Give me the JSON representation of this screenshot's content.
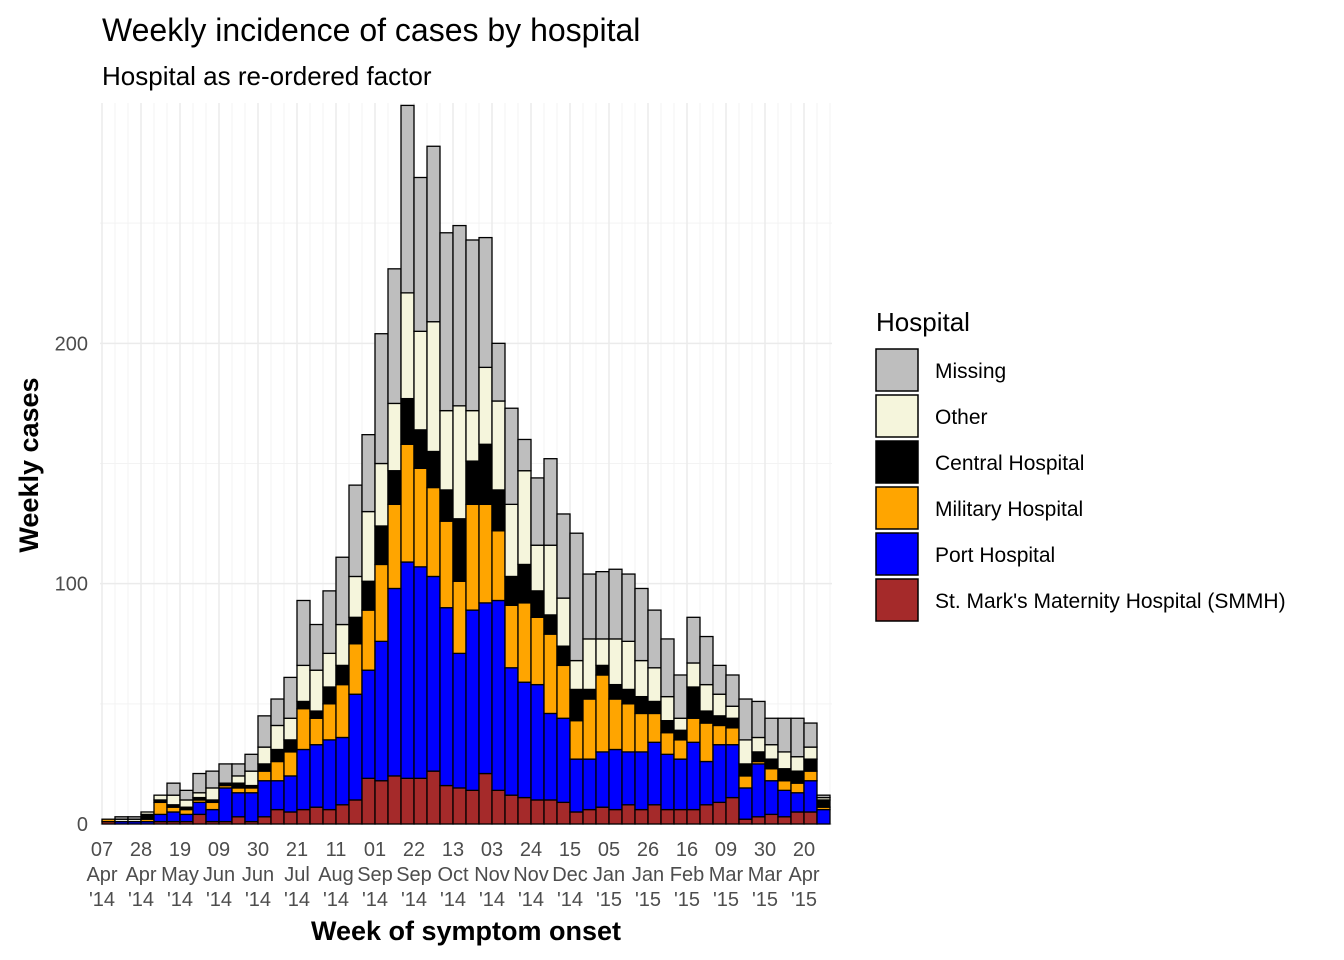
{
  "chart_data": {
    "type": "histogram",
    "title": "Weekly incidence of cases by hospital",
    "subtitle": "Hospital as re-ordered factor",
    "x_label": "Week of symptom onset",
    "y_label": "Weekly cases",
    "legend_title": "Hospital",
    "legend_position": "right",
    "grid": true,
    "bins": [
      0,
      1,
      2,
      3,
      4,
      5,
      6,
      7,
      8,
      9,
      10,
      11,
      12,
      13,
      14,
      15,
      16,
      17,
      18,
      19,
      20,
      21,
      22,
      23,
      24,
      25,
      26,
      27,
      28,
      29,
      30,
      31,
      32,
      33,
      34,
      35,
      36,
      37,
      38,
      39,
      40,
      41,
      42,
      43,
      44,
      45,
      46,
      47,
      48,
      49,
      50,
      51,
      52,
      53,
      54,
      55,
      56
    ],
    "xlim": [
      0,
      56
    ],
    "xticks": [
      {
        "value": 0,
        "label": [
          "07",
          "Apr",
          "'14"
        ]
      },
      {
        "value": 3,
        "label": [
          "28",
          "Apr",
          "'14"
        ]
      },
      {
        "value": 6,
        "label": [
          "19",
          "May",
          "'14"
        ]
      },
      {
        "value": 9,
        "label": [
          "09",
          "Jun",
          "'14"
        ]
      },
      {
        "value": 12,
        "label": [
          "30",
          "Jun",
          "'14"
        ]
      },
      {
        "value": 15,
        "label": [
          "21",
          "Jul",
          "'14"
        ]
      },
      {
        "value": 18,
        "label": [
          "11",
          "Aug",
          "'14"
        ]
      },
      {
        "value": 21,
        "label": [
          "01",
          "Sep",
          "'14"
        ]
      },
      {
        "value": 24,
        "label": [
          "22",
          "Sep",
          "'14"
        ]
      },
      {
        "value": 27,
        "label": [
          "13",
          "Oct",
          "'14"
        ]
      },
      {
        "value": 30,
        "label": [
          "03",
          "Nov",
          "'14"
        ]
      },
      {
        "value": 33,
        "label": [
          "24",
          "Nov",
          "'14"
        ]
      },
      {
        "value": 36,
        "label": [
          "15",
          "Dec",
          "'14"
        ]
      },
      {
        "value": 39,
        "label": [
          "05",
          "Jan",
          "'15"
        ]
      },
      {
        "value": 42,
        "label": [
          "26",
          "Jan",
          "'15"
        ]
      },
      {
        "value": 45,
        "label": [
          "16",
          "Feb",
          "'15"
        ]
      },
      {
        "value": 48,
        "label": [
          "09",
          "Mar",
          "'15"
        ]
      },
      {
        "value": 51,
        "label": [
          "30",
          "Mar",
          "'15"
        ]
      },
      {
        "value": 54,
        "label": [
          "20",
          "Apr",
          "'15"
        ]
      }
    ],
    "ylim": [
      0,
      300
    ],
    "yticks": [
      0,
      100,
      200
    ],
    "yminor_ticks": [
      50,
      150,
      250
    ],
    "series": [
      {
        "name": "St. Mark's Maternity Hospital (SMMH)",
        "color": "#a52a2a",
        "values": [
          1,
          0,
          0,
          0,
          1,
          1,
          1,
          4,
          1,
          1,
          3,
          1,
          3,
          6,
          5,
          6,
          7,
          6,
          8,
          10,
          19,
          18,
          20,
          19,
          19,
          22,
          16,
          15,
          14,
          21,
          14,
          12,
          11,
          10,
          10,
          9,
          5,
          6,
          7,
          6,
          8,
          6,
          8,
          6,
          6,
          6,
          8,
          9,
          11,
          2,
          3,
          4,
          3,
          5,
          5,
          0
        ]
      },
      {
        "name": "Port Hospital",
        "color": "#0000ff",
        "values": [
          0,
          1,
          1,
          1,
          3,
          4,
          3,
          5,
          5,
          14,
          10,
          12,
          15,
          12,
          15,
          25,
          26,
          29,
          28,
          44,
          45,
          58,
          78,
          90,
          88,
          81,
          74,
          56,
          75,
          71,
          79,
          53,
          48,
          48,
          36,
          35,
          22,
          21,
          23,
          25,
          22,
          24,
          26,
          23,
          21,
          28,
          18,
          24,
          22,
          13,
          22,
          14,
          11,
          8,
          13,
          6
        ]
      },
      {
        "name": "Military Hospital",
        "color": "#ffa500",
        "values": [
          1,
          0,
          0,
          1,
          5,
          2,
          2,
          1,
          3,
          1,
          2,
          2,
          4,
          8,
          10,
          17,
          11,
          15,
          22,
          21,
          25,
          32,
          35,
          49,
          41,
          37,
          36,
          30,
          44,
          41,
          29,
          26,
          33,
          28,
          33,
          22,
          16,
          25,
          32,
          21,
          20,
          16,
          12,
          9,
          8,
          10,
          16,
          8,
          7,
          5,
          1,
          5,
          4,
          4,
          4,
          1
        ]
      },
      {
        "name": "Central Hospital",
        "color": "#000000",
        "values": [
          0,
          0,
          0,
          2,
          1,
          1,
          1,
          1,
          1,
          1,
          2,
          1,
          3,
          5,
          5,
          3,
          3,
          7,
          8,
          11,
          12,
          16,
          14,
          19,
          16,
          15,
          13,
          26,
          18,
          25,
          17,
          12,
          16,
          11,
          8,
          8,
          13,
          4,
          4,
          6,
          6,
          7,
          5,
          5,
          4,
          13,
          5,
          4,
          4,
          5,
          4,
          4,
          5,
          5,
          5,
          3
        ]
      },
      {
        "name": "Other",
        "color": "#f5f5dc",
        "values": [
          0,
          1,
          1,
          1,
          2,
          4,
          3,
          2,
          5,
          0,
          3,
          6,
          7,
          10,
          9,
          15,
          17,
          14,
          17,
          17,
          29,
          26,
          28,
          44,
          41,
          54,
          33,
          47,
          21,
          32,
          37,
          30,
          39,
          19,
          29,
          20,
          12,
          21,
          11,
          19,
          20,
          15,
          14,
          10,
          5,
          10,
          11,
          9,
          5,
          10,
          6,
          6,
          7,
          6,
          5,
          1
        ]
      },
      {
        "name": "Missing",
        "color": "#bebebe",
        "values": [
          0,
          1,
          1,
          0,
          0,
          5,
          4,
          8,
          7,
          8,
          5,
          7,
          13,
          11,
          17,
          27,
          19,
          26,
          28,
          38,
          32,
          54,
          56,
          78,
          64,
          73,
          74,
          75,
          71,
          54,
          24,
          40,
          13,
          28,
          36,
          35,
          53,
          27,
          28,
          29,
          28,
          30,
          24,
          24,
          18,
          19,
          20,
          12,
          13,
          17,
          15,
          11,
          14,
          16,
          10,
          1
        ]
      }
    ]
  }
}
